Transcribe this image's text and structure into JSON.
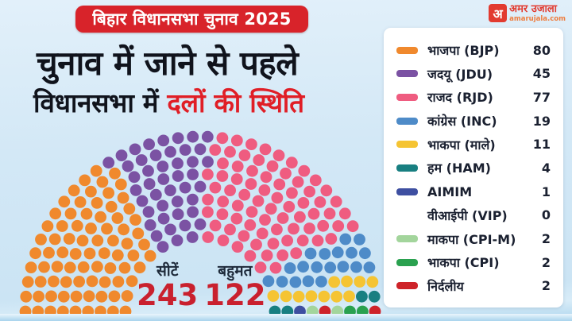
{
  "header": {
    "badge": "बिहार विधानसभा चुनाव 2025",
    "title_line1": "चुनाव में जाने से पहले",
    "title_line2_dark": "विधानसभा में ",
    "title_line2_red": "दलों की स्थिति"
  },
  "logo": {
    "initial": "अ",
    "name": "अमर उजाला",
    "domain": "amarujala.com"
  },
  "stats": {
    "seats_label": "सीटें",
    "seats_value": "243",
    "majority_label": "बहुमत",
    "majority_value": "122"
  },
  "colors": {
    "badge_red": "#d8232a",
    "accent_red": "#e01e26",
    "number_red": "#c9202e",
    "text_dark": "#10131c",
    "panel_bg": "#ffffff",
    "background_blue": "#d3e8f6"
  },
  "chart_data": {
    "type": "parliament-hemicycle",
    "title": "चुनाव में जाने से पहले विधानसभा में दलों की स्थिति",
    "total_seats": 243,
    "majority_needed": 122,
    "series": [
      {
        "label": "भाजपा (BJP)",
        "value": 80,
        "color": "#F0892D"
      },
      {
        "label": "जदयू (JDU)",
        "value": 45,
        "color": "#7B52A3"
      },
      {
        "label": "राजद (RJD)",
        "value": 77,
        "color": "#EF5C80"
      },
      {
        "label": "कांग्रेस (INC)",
        "value": 19,
        "color": "#4E8BC8"
      },
      {
        "label": "भाकपा (माले)",
        "value": 11,
        "color": "#F5C433"
      },
      {
        "label": "हम (HAM)",
        "value": 4,
        "color": "#187F81"
      },
      {
        "label": "AIMIM",
        "value": 1,
        "color": "#3E4FA1"
      },
      {
        "label": "वीआईपी (VIP)",
        "value": 0,
        "color": null
      },
      {
        "label": "माकपा (CPI-M)",
        "value": 2,
        "color": "#A3D59C"
      },
      {
        "label": "भाकपा (CPI)",
        "value": 2,
        "color": "#2AA14F"
      },
      {
        "label": "निर्दलीय",
        "value": 2,
        "color": "#CE2329"
      }
    ],
    "layout": {
      "rows": 9,
      "arc_degrees": 180,
      "legend_position": "right",
      "grid": false
    }
  }
}
